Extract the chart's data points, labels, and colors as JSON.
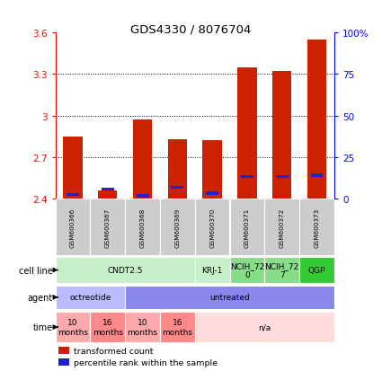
{
  "title": "GDS4330 / 8076704",
  "samples": [
    "GSM600366",
    "GSM600367",
    "GSM600368",
    "GSM600369",
    "GSM600370",
    "GSM600371",
    "GSM600372",
    "GSM600373"
  ],
  "red_values": [
    2.85,
    2.46,
    2.97,
    2.83,
    2.82,
    3.35,
    3.32,
    3.55
  ],
  "blue_values": [
    2.43,
    2.47,
    2.42,
    2.48,
    2.44,
    2.56,
    2.56,
    2.57
  ],
  "red_base": 2.4,
  "ylim_left": [
    2.4,
    3.6
  ],
  "ylim_right": [
    0,
    100
  ],
  "yticks_left": [
    2.4,
    2.7,
    3.0,
    3.3,
    3.6
  ],
  "ytick_labels_left": [
    "2.4",
    "2.7",
    "3",
    "3.3",
    "3.6"
  ],
  "yticks_right": [
    0,
    25,
    50,
    75,
    100
  ],
  "ytick_labels_right": [
    "0",
    "25",
    "50",
    "75",
    "100%"
  ],
  "cell_line_groups": [
    {
      "label": "CNDT2.5",
      "start": 0,
      "end": 4,
      "color": "#c8f0c8"
    },
    {
      "label": "KRJ-1",
      "start": 4,
      "end": 5,
      "color": "#c8f0c8"
    },
    {
      "label": "NCIH_72\n0",
      "start": 5,
      "end": 6,
      "color": "#88dd88"
    },
    {
      "label": "NCIH_72\n7",
      "start": 6,
      "end": 7,
      "color": "#88dd88"
    },
    {
      "label": "QGP",
      "start": 7,
      "end": 8,
      "color": "#33cc33"
    }
  ],
  "agent_groups": [
    {
      "label": "octreotide",
      "start": 0,
      "end": 2,
      "color": "#bbbbff"
    },
    {
      "label": "untreated",
      "start": 2,
      "end": 8,
      "color": "#8888ee"
    }
  ],
  "time_groups": [
    {
      "label": "10\nmonths",
      "start": 0,
      "end": 1,
      "color": "#ffaaaa"
    },
    {
      "label": "16\nmonths",
      "start": 1,
      "end": 2,
      "color": "#ff8888"
    },
    {
      "label": "10\nmonths",
      "start": 2,
      "end": 3,
      "color": "#ffaaaa"
    },
    {
      "label": "16\nmonths",
      "start": 3,
      "end": 4,
      "color": "#ff8888"
    },
    {
      "label": "n/a",
      "start": 4,
      "end": 8,
      "color": "#ffdddd"
    }
  ],
  "legend_red": "transformed count",
  "legend_blue": "percentile rank within the sample",
  "bar_width": 0.55,
  "red_color": "#cc2200",
  "blue_color": "#2222cc",
  "sample_box_color": "#cccccc",
  "label_cell_line": "cell line",
  "label_agent": "agent",
  "label_time": "time"
}
